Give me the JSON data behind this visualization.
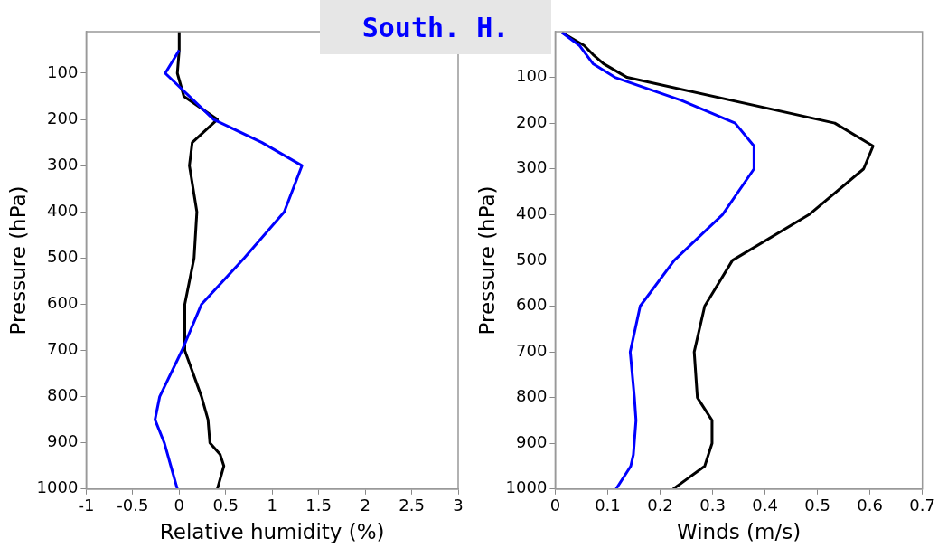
{
  "chart_data": [
    {
      "type": "line",
      "title": "South. H.",
      "xlabel": "Relative humidity (%)",
      "ylabel": "Pressure (hPa)",
      "xlim": [
        -1,
        3
      ],
      "xticks": [
        -1,
        -0.5,
        0,
        0.5,
        1,
        1.5,
        2,
        2.5,
        3
      ],
      "ylim": [
        1000,
        10
      ],
      "yticks": [
        100,
        200,
        300,
        400,
        500,
        600,
        700,
        800,
        900,
        1000
      ],
      "grid": false,
      "legend": false,
      "line_style": "solid",
      "marker": "none",
      "series": [
        {
          "color": "#0000ff",
          "x": [
            0,
            -0.15,
            0.37,
            0.89,
            1.32,
            1.13,
            0.7,
            0.24,
            0.03,
            -0.21,
            -0.26,
            -0.16,
            -0.09,
            -0.02
          ],
          "values": [
            50,
            100,
            200,
            250,
            300,
            400,
            500,
            600,
            700,
            800,
            850,
            900,
            950,
            1000
          ]
        },
        {
          "color": "#000000",
          "x": [
            0,
            0,
            -0.02,
            0.05,
            0.41,
            0.14,
            0.11,
            0.19,
            0.16,
            0.06,
            0.06,
            0.24,
            0.31,
            0.33,
            0.44,
            0.48,
            0.41
          ],
          "values": [
            10,
            50,
            100,
            150,
            200,
            250,
            300,
            400,
            500,
            600,
            700,
            800,
            850,
            900,
            925,
            950,
            1000
          ]
        }
      ]
    },
    {
      "type": "line",
      "xlabel": "Winds (m/s)",
      "ylabel": "Pressure (hPa)",
      "xlim": [
        0,
        0.7
      ],
      "xticks": [
        0,
        0.1,
        0.2,
        0.3,
        0.4,
        0.5,
        0.6,
        0.7
      ],
      "ylim": [
        1000,
        0
      ],
      "yticks": [
        100,
        200,
        300,
        400,
        500,
        600,
        700,
        800,
        900,
        1000
      ],
      "grid": false,
      "legend": false,
      "line_style": "solid",
      "marker": "none",
      "series": [
        {
          "color": "#0000ff",
          "x": [
            0.013,
            0.046,
            0.072,
            0.114,
            0.24,
            0.343,
            0.379,
            0.379,
            0.319,
            0.227,
            0.162,
            0.143,
            0.151,
            0.154,
            0.149,
            0.144,
            0.116
          ],
          "values": [
            2,
            30,
            70,
            100,
            150,
            200,
            250,
            300,
            400,
            500,
            600,
            700,
            800,
            850,
            925,
            950,
            1000
          ]
        },
        {
          "color": "#000000",
          "x": [
            0.013,
            0.055,
            0.072,
            0.092,
            0.137,
            0.533,
            0.606,
            0.588,
            0.484,
            0.338,
            0.285,
            0.265,
            0.271,
            0.299,
            0.299,
            0.285,
            0.225
          ],
          "values": [
            2,
            30,
            50,
            70,
            100,
            200,
            250,
            300,
            400,
            500,
            600,
            700,
            800,
            850,
            900,
            950,
            1000
          ]
        }
      ]
    }
  ]
}
